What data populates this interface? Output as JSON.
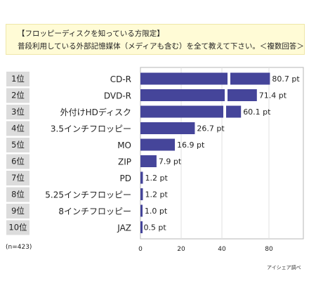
{
  "question": {
    "line1": "【フロッピーディスクを知っている方限定】",
    "line2": "普段利用している外部記憶媒体（メディアも含む）を全て教えて下さい。＜複数回答＞"
  },
  "sample_size": "(n=423)",
  "source": "アイシェア調べ",
  "chart_data": {
    "type": "bar",
    "orientation": "horizontal",
    "ranks": [
      "1位",
      "2位",
      "3位",
      "4位",
      "5位",
      "6位",
      "7位",
      "8位",
      "9位",
      "10位"
    ],
    "categories": [
      "CD-R",
      "DVD-R",
      "外付けHDディスク",
      "3.5インチフロッピー",
      "MO",
      "ZIP",
      "PD",
      "5.25インチフロッピー",
      "8インチフロッピー",
      "JAZ"
    ],
    "values": [
      80.7,
      71.4,
      60.1,
      26.7,
      16.9,
      7.9,
      1.2,
      1.2,
      1.0,
      0.5
    ],
    "value_labels": [
      "80.7 pt",
      "71.4 pt",
      "60.1 pt",
      "26.7 pt",
      "16.9 pt",
      "7.9 pt",
      "1.2 pt",
      "1.2 pt",
      "1.0 pt",
      "0.5 pt"
    ],
    "axis_ticks": [
      0,
      20,
      40,
      80
    ],
    "xlim": [
      0,
      80.7
    ],
    "axis_break": true,
    "bar_color": "#45459a",
    "title": "",
    "xlabel": "",
    "ylabel": ""
  }
}
